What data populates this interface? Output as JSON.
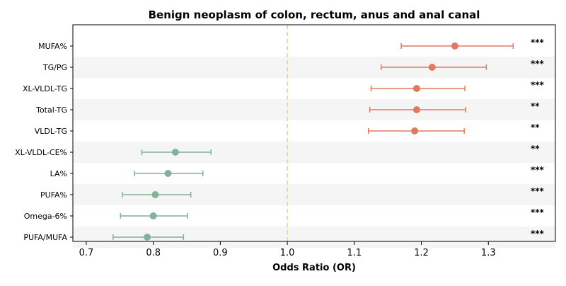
{
  "chart_data": {
    "type": "forest",
    "title": "Benign neoplasm of colon, rectum, anus and anal canal",
    "xlabel": "Odds Ratio (OR)",
    "ylabel": "",
    "xlim": [
      0.68,
      1.4
    ],
    "xticks": [
      0.7,
      0.8,
      0.9,
      1.0,
      1.1,
      1.2,
      1.3
    ],
    "xtick_labels": [
      "0.7",
      "0.8",
      "0.9",
      "1.0",
      "1.1",
      "1.2",
      "1.3"
    ],
    "reference_line": 1.0,
    "grid": false,
    "alternating_row_shading": true,
    "colors": {
      "positive": "#E07A5F",
      "negative": "#81B29A",
      "reference": "#F2CC8F",
      "row_shade": "#F5F5F5"
    },
    "rows": [
      {
        "label": "MUFA%",
        "or": 1.25,
        "lower": 1.17,
        "upper": 1.337,
        "significance": "***"
      },
      {
        "label": "TG/PG",
        "or": 1.216,
        "lower": 1.14,
        "upper": 1.297,
        "significance": "***"
      },
      {
        "label": "XL-VLDL-TG",
        "or": 1.193,
        "lower": 1.125,
        "upper": 1.265,
        "significance": "***"
      },
      {
        "label": "Total-TG",
        "or": 1.193,
        "lower": 1.123,
        "upper": 1.266,
        "significance": "**"
      },
      {
        "label": "VLDL-TG",
        "or": 1.19,
        "lower": 1.121,
        "upper": 1.264,
        "significance": "**"
      },
      {
        "label": "XL-VLDL-CE%",
        "or": 0.833,
        "lower": 0.783,
        "upper": 0.886,
        "significance": "**"
      },
      {
        "label": "LA%",
        "or": 0.822,
        "lower": 0.772,
        "upper": 0.874,
        "significance": "***"
      },
      {
        "label": "PUFA%",
        "or": 0.803,
        "lower": 0.754,
        "upper": 0.856,
        "significance": "***"
      },
      {
        "label": "Omega-6%",
        "or": 0.8,
        "lower": 0.751,
        "upper": 0.851,
        "significance": "***"
      },
      {
        "label": "PUFA/MUFA",
        "or": 0.791,
        "lower": 0.74,
        "upper": 0.845,
        "significance": "***"
      }
    ]
  }
}
